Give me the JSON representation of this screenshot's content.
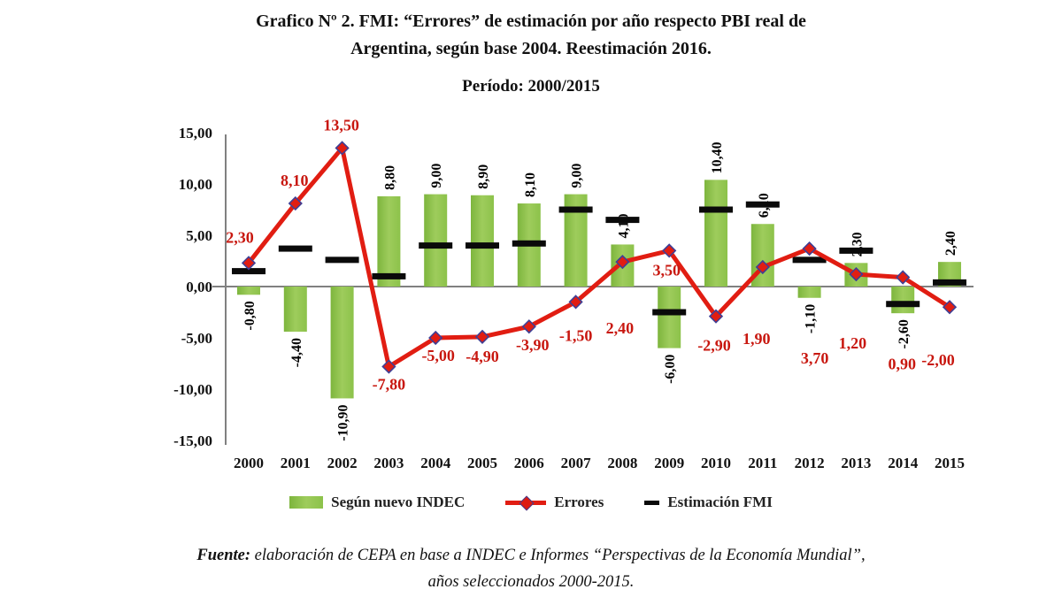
{
  "title": {
    "line1": "Grafico Nº 2. FMI: “Errores” de estimación por año respecto PBI real de",
    "line2": "Argentina, según base 2004. Reestimación 2016.",
    "subtitle": "Período: 2000/2015"
  },
  "legend": {
    "items": [
      {
        "label": "Según nuevo INDEC",
        "type": "bar"
      },
      {
        "label": "Errores",
        "type": "line"
      },
      {
        "label": "Estimación FMI",
        "type": "dash"
      }
    ]
  },
  "source": {
    "prefix": "Fuente:",
    "line1_rest": " elaboración de CEPA en base a INDEC e Informes “Perspectivas de la Economía Mundial”,",
    "line2": "años seleccionados 2000-2015."
  },
  "colors": {
    "bar_green": "#8fc54e",
    "bar_green_dark": "#7db53d",
    "bar_green_light": "#9ecc5c",
    "line_red": "#e11d12",
    "label_red": "#c8170f",
    "marker_border_blue": "#3f3f95",
    "dash_black": "#0a0a0a",
    "axis_gray": "#808080",
    "text_black": "#111111"
  },
  "chart_data": {
    "type": "bar",
    "subtype": "combo-bar-line-dash",
    "title": "FMI: Errores de estimación por año respecto PBI real de Argentina, base 2004, reestimación 2016",
    "categories": [
      "2000",
      "2001",
      "2002",
      "2003",
      "2004",
      "2005",
      "2006",
      "2007",
      "2008",
      "2009",
      "2010",
      "2011",
      "2012",
      "2013",
      "2014",
      "2015"
    ],
    "ylim": [
      -15,
      15
    ],
    "ytick_values": [
      15,
      10,
      5,
      0,
      -5,
      -10,
      -15
    ],
    "ytick_labels": [
      "15,00",
      "10,00",
      "5,00",
      "0,00",
      "-5,00",
      "-10,00",
      "-15,00"
    ],
    "grid": false,
    "legend_position": "bottom",
    "series": [
      {
        "name": "Según nuevo INDEC",
        "type": "bar",
        "values": [
          -0.8,
          -4.4,
          -10.9,
          8.8,
          9.0,
          8.9,
          8.1,
          9.0,
          4.1,
          -6.0,
          10.4,
          6.1,
          -1.1,
          2.3,
          -2.6,
          2.4
        ],
        "labels": [
          "-0,80",
          "-4,40",
          "-10,90",
          "8,80",
          "9,00",
          "8,90",
          "8,10",
          "9,00",
          "4,10",
          "-6,00",
          "10,40",
          "6,10",
          "-1,10",
          "2,30",
          "-2,60",
          "2,40"
        ],
        "label_style": "rotated-90-black"
      },
      {
        "name": "Errores",
        "type": "line",
        "values": [
          2.3,
          8.1,
          13.5,
          -7.8,
          -5.0,
          -4.9,
          -3.9,
          -1.5,
          2.4,
          3.5,
          -2.9,
          1.9,
          3.7,
          1.2,
          0.9,
          -2.0
        ],
        "labels": [
          "2,30",
          "8,10",
          "13,50",
          "-7,80",
          "-5,00",
          "-4,90",
          "-3,90",
          "-1,50",
          "2,40",
          "3,50",
          "-2,90",
          "1,90",
          "3,70",
          "1,20",
          "0,90",
          "-2,00"
        ],
        "label_style": "red-bold",
        "label_offsets": [
          [
            -10,
            -29
          ],
          [
            -1,
            -26
          ],
          [
            -1,
            -26
          ],
          [
            0,
            20
          ],
          [
            3,
            20
          ],
          [
            0,
            22
          ],
          [
            4,
            21
          ],
          [
            0,
            38
          ],
          [
            -3,
            75
          ],
          [
            -3,
            22
          ],
          [
            -2,
            33
          ],
          [
            -7,
            81
          ],
          [
            6,
            124
          ],
          [
            -4,
            78
          ],
          [
            -1,
            98
          ],
          [
            -13,
            60
          ]
        ]
      },
      {
        "name": "Estimación FMI",
        "type": "dash",
        "values": [
          1.5,
          3.7,
          2.6,
          1.0,
          4.0,
          4.0,
          4.2,
          7.5,
          6.5,
          -2.5,
          7.5,
          8.0,
          2.6,
          3.5,
          -1.7,
          0.4
        ],
        "labels": []
      }
    ]
  }
}
